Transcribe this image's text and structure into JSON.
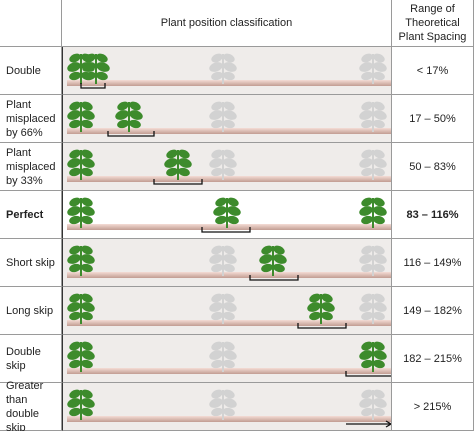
{
  "header": {
    "classification": "Plant position classification",
    "range": "Range of Theoretical Plant Spacing"
  },
  "rows": [
    {
      "label": "Double",
      "range": "< 17%"
    },
    {
      "label": "Plant misplaced by 66%",
      "range": "17 – 50%"
    },
    {
      "label": "Plant misplaced by 33%",
      "range": "50 – 83%"
    },
    {
      "label": "Perfect",
      "range": "83 – 116%"
    },
    {
      "label": "Short skip",
      "range": "116 – 149%"
    },
    {
      "label": "Long skip",
      "range": "149 – 182%"
    },
    {
      "label": "Double skip",
      "range": "182 – 215%"
    },
    {
      "label": "Greater than double skip",
      "range": "> 215%"
    }
  ]
}
